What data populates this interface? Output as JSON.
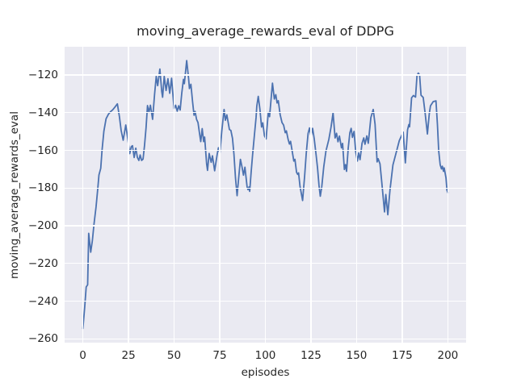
{
  "figure": {
    "title": "moving_average_rewards_eval of DDPG"
  },
  "chart_data": {
    "type": "line",
    "title": "moving_average_rewards_eval of DDPG",
    "xlabel": "episodes",
    "ylabel": "moving_average_rewards_eval",
    "xlim": [
      -10,
      210
    ],
    "ylim": [
      -262,
      -105
    ],
    "grid": true,
    "legend_visible": false,
    "colors": {
      "line": "#4c72b0",
      "plot_background": "#eaeaf2",
      "gridline": "#ffffff",
      "figure_background": "#ffffff",
      "text": "#262626"
    },
    "xticks": [
      {
        "value": 0,
        "label": "0"
      },
      {
        "value": 25,
        "label": "25"
      },
      {
        "value": 50,
        "label": "50"
      },
      {
        "value": 75,
        "label": "75"
      },
      {
        "value": 100,
        "label": "100"
      },
      {
        "value": 125,
        "label": "125"
      },
      {
        "value": 150,
        "label": "150"
      },
      {
        "value": 175,
        "label": "175"
      },
      {
        "value": 200,
        "label": "200"
      }
    ],
    "yticks": [
      {
        "value": -260,
        "label": "−260"
      },
      {
        "value": -240,
        "label": "−240"
      },
      {
        "value": -220,
        "label": "−220"
      },
      {
        "value": -200,
        "label": "−200"
      },
      {
        "value": -180,
        "label": "−180"
      },
      {
        "value": -160,
        "label": "−160"
      },
      {
        "value": -140,
        "label": "−140"
      },
      {
        "value": -120,
        "label": "−120"
      }
    ],
    "series": [
      {
        "name": "moving_average_rewards_eval",
        "color": "#4c72b0",
        "line_width": 1.8,
        "x": [
          0,
          1,
          1.8,
          2.6,
          3.2,
          4.3,
          5.2,
          6.1,
          7.2,
          8.3,
          8.8,
          9.8,
          10.5,
          11.5,
          12.7,
          14,
          15.2,
          16.3,
          17.4,
          18.9,
          20,
          21,
          22.1,
          23.5,
          24.3,
          25.7,
          26.5,
          27.2,
          28.1,
          29,
          29.9,
          30.7,
          31.4,
          32.2,
          33,
          33.8,
          34.6,
          35.4,
          36.2,
          37,
          38.2,
          39.3,
          40.2,
          41,
          42.2,
          43.2,
          43.7,
          44.6,
          45.6,
          46.6,
          47.6,
          48.6,
          50,
          50.8,
          51.7,
          52.5,
          53.3,
          54.2,
          55.1,
          55.6,
          56.9,
          57.9,
          58.4,
          59.2,
          60.1,
          60.9,
          61.5,
          62.3,
          63.1,
          64,
          64.6,
          65.4,
          66.2,
          66.7,
          67.8,
          68.3,
          69.2,
          70.3,
          71,
          72.2,
          73.6,
          74.3,
          75.1,
          76.1,
          77.4,
          78.1,
          78.9,
          80.3,
          81.1,
          82,
          82.8,
          83.6,
          84.5,
          85.4,
          86.3,
          87.3,
          88,
          88.8,
          90,
          90.5,
          91,
          91.4,
          92.2,
          93,
          94,
          94.9,
          95.3,
          96.1,
          97,
          97.9,
          98.6,
          99.5,
          100.4,
          101.6,
          102.3,
          103.9,
          104.9,
          105.7,
          106.4,
          107.1,
          108.1,
          109.1,
          110,
          110.9,
          111.5,
          112.5,
          113.2,
          113.8,
          115,
          115.6,
          116.2,
          117.1,
          117.7,
          118.2,
          119,
          120.4,
          121.5,
          122.4,
          123.4,
          124.2,
          125,
          125.9,
          126.8,
          127.9,
          128.6,
          129.4,
          130.1,
          130.9,
          132,
          133.2,
          134.8,
          136,
          137.1,
          138.2,
          139,
          139.8,
          140.6,
          141.7,
          142.3,
          143.3,
          143.9,
          144.5,
          145.4,
          146.3,
          147,
          147.7,
          148.6,
          149.5,
          150.4,
          151.1,
          151.9,
          153,
          153.9,
          154.6,
          155.6,
          156.4,
          157.8,
          159.1,
          160.1,
          161.2,
          161.8,
          162.8,
          163.8,
          165.3,
          166,
          167.1,
          168.3,
          169.9,
          171.9,
          173.4,
          175.5,
          176.7,
          177.9,
          178.6,
          179,
          180.1,
          181.1,
          182.3,
          183.1,
          183.8,
          184.5,
          185.3,
          186.5,
          187.6,
          188.8,
          189.8,
          190.5,
          192,
          193.5,
          194.3,
          195,
          195.8,
          196.5,
          197,
          197.6,
          198,
          199,
          199.5,
          200
        ],
        "y": [
          -254.5,
          -243,
          -232.5,
          -231.3,
          -204,
          -214,
          -208,
          -199,
          -190,
          -179,
          -173,
          -169.5,
          -160,
          -149.8,
          -143.2,
          -140.8,
          -139.4,
          -138.5,
          -137.2,
          -135.3,
          -142,
          -149.5,
          -154.6,
          -146.5,
          -151.8,
          -161.7,
          -158,
          -157.5,
          -163.8,
          -158.8,
          -163.8,
          -165.3,
          -162.4,
          -165.3,
          -164.6,
          -157.4,
          -148,
          -136.2,
          -139.8,
          -136,
          -143.5,
          -130,
          -120.7,
          -125.6,
          -116.8,
          -128.7,
          -131.8,
          -120.7,
          -128.2,
          -122,
          -129.7,
          -121.7,
          -137.8,
          -136,
          -139.2,
          -136.3,
          -138.6,
          -129.7,
          -122.3,
          -124.6,
          -112.3,
          -121.5,
          -127.2,
          -124.9,
          -134.2,
          -141.3,
          -139.3,
          -143.5,
          -145.2,
          -151.6,
          -155.3,
          -148.4,
          -155.3,
          -152.9,
          -167.2,
          -170.6,
          -161.6,
          -166.3,
          -162.9,
          -170.8,
          -162,
          -158.6,
          -161.4,
          -150,
          -138.3,
          -144,
          -141.1,
          -148.9,
          -149.4,
          -153.6,
          -162,
          -174.5,
          -184,
          -174.4,
          -164.7,
          -169.2,
          -173.1,
          -168.9,
          -179.4,
          -180.8,
          -179.4,
          -181.7,
          -171.5,
          -162.3,
          -152,
          -142.5,
          -136.5,
          -131.3,
          -138,
          -147.6,
          -145.4,
          -152.3,
          -153.9,
          -139.9,
          -142.1,
          -124.3,
          -132.7,
          -130.4,
          -134.8,
          -133.6,
          -141,
          -145.2,
          -146.6,
          -150.6,
          -149.6,
          -154.2,
          -156.6,
          -155.2,
          -162.2,
          -165.6,
          -164.7,
          -171.6,
          -172.7,
          -171.9,
          -179.1,
          -186.6,
          -173.6,
          -161.6,
          -150.9,
          -148.1,
          -152.4,
          -148.3,
          -153.9,
          -163.1,
          -169.4,
          -178.6,
          -184.3,
          -179.3,
          -168.6,
          -160.3,
          -154.1,
          -147.6,
          -140.1,
          -153.4,
          -150.9,
          -155.4,
          -152.4,
          -158.6,
          -156.3,
          -170.1,
          -167.6,
          -171.1,
          -158.6,
          -150.6,
          -148.3,
          -153.1,
          -149.9,
          -160.6,
          -165.6,
          -161.3,
          -164.9,
          -156.1,
          -153.4,
          -156.7,
          -152.3,
          -156.2,
          -142.6,
          -138.3,
          -146.1,
          -166.1,
          -164.4,
          -167.1,
          -176.9,
          -192.6,
          -183.4,
          -194.1,
          -180.9,
          -167.7,
          -160.4,
          -154.8,
          -150.3,
          -166.6,
          -149.1,
          -146.3,
          -147.5,
          -132.1,
          -130.9,
          -131.7,
          -120.3,
          -119,
          -119.9,
          -130.7,
          -131.9,
          -140.7,
          -151.3,
          -140.6,
          -136.3,
          -134.1,
          -133.7,
          -146.3,
          -160.4,
          -167.6,
          -169.8,
          -168.4,
          -171.1,
          -169.3,
          -174.6,
          -181.1,
          -182.4
        ]
      }
    ]
  }
}
